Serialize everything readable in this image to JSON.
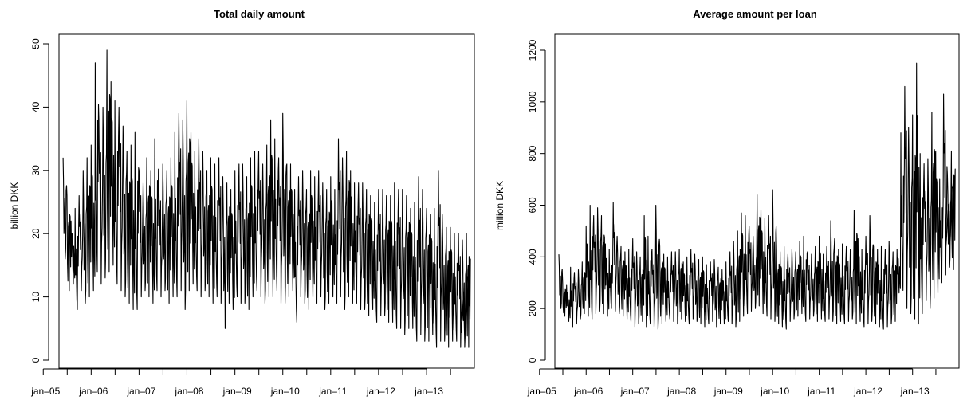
{
  "chart_data": [
    {
      "type": "line",
      "title": "Total daily amount",
      "xlabel": "",
      "ylabel": "billion DKK",
      "xlim": [
        "2005-05-01",
        "2013-12-31"
      ],
      "ylim": [
        0,
        50
      ],
      "yticks": [
        0,
        10,
        20,
        30,
        40,
        50
      ],
      "xticks": [
        {
          "date": "2005-01-01",
          "label": "jan–05"
        },
        {
          "date": "2006-01-01",
          "label": "jan–06"
        },
        {
          "date": "2007-01-01",
          "label": "jan–07"
        },
        {
          "date": "2008-01-01",
          "label": "jan–08"
        },
        {
          "date": "2009-01-01",
          "label": "jan–09"
        },
        {
          "date": "2010-01-01",
          "label": "jan–10"
        },
        {
          "date": "2011-01-01",
          "label": "jan–11"
        },
        {
          "date": "2012-01-01",
          "label": "jan–12"
        },
        {
          "date": "2013-01-01",
          "label": "jan–13"
        }
      ],
      "series": [
        {
          "color": "#000000",
          "x": [
            "2005-06-01",
            "2005-07-01",
            "2005-08-01",
            "2005-09-01",
            "2005-10-01",
            "2005-11-01",
            "2005-12-01",
            "2006-01-01",
            "2006-02-01",
            "2006-03-01",
            "2006-04-01",
            "2006-05-01",
            "2006-06-01",
            "2006-07-01",
            "2006-08-01",
            "2006-09-01",
            "2006-10-01",
            "2006-11-01",
            "2006-12-01",
            "2007-01-01",
            "2007-02-01",
            "2007-03-01",
            "2007-04-01",
            "2007-05-01",
            "2007-06-01",
            "2007-07-01",
            "2007-08-01",
            "2007-09-01",
            "2007-10-01",
            "2007-11-01",
            "2007-12-01",
            "2008-01-01",
            "2008-02-01",
            "2008-03-01",
            "2008-04-01",
            "2008-05-01",
            "2008-06-01",
            "2008-07-01",
            "2008-08-01",
            "2008-09-01",
            "2008-10-01",
            "2008-11-01",
            "2008-12-01",
            "2009-01-01",
            "2009-02-01",
            "2009-03-01",
            "2009-04-01",
            "2009-05-01",
            "2009-06-01",
            "2009-07-01",
            "2009-08-01",
            "2009-09-01",
            "2009-10-01",
            "2009-11-01",
            "2009-12-01",
            "2010-01-01",
            "2010-02-01",
            "2010-03-01",
            "2010-04-01",
            "2010-05-01",
            "2010-06-01",
            "2010-07-01",
            "2010-08-01",
            "2010-09-01",
            "2010-10-01",
            "2010-11-01",
            "2010-12-01",
            "2011-01-01",
            "2011-02-01",
            "2011-03-01",
            "2011-04-01",
            "2011-05-01",
            "2011-06-01",
            "2011-07-01",
            "2011-08-01",
            "2011-09-01",
            "2011-10-01",
            "2011-11-01",
            "2011-12-01",
            "2012-01-01",
            "2012-02-01",
            "2012-03-01",
            "2012-04-01",
            "2012-05-01",
            "2012-06-01",
            "2012-07-01",
            "2012-08-01",
            "2012-09-01",
            "2012-10-01",
            "2012-11-01",
            "2012-12-01",
            "2013-01-01",
            "2013-02-01",
            "2013-03-01",
            "2013-04-01",
            "2013-05-01",
            "2013-06-01",
            "2013-07-01",
            "2013-08-01",
            "2013-09-01",
            "2013-10-01",
            "2013-11-01",
            "2013-12-01"
          ],
          "low": [
            16,
            11,
            12,
            8,
            11,
            9,
            10,
            11,
            14,
            12,
            13,
            14,
            15,
            12,
            11,
            10,
            9,
            8,
            8,
            10,
            11,
            10,
            9,
            11,
            10,
            11,
            9,
            10,
            10,
            11,
            8,
            11,
            12,
            11,
            10,
            11,
            10,
            9,
            10,
            9,
            5,
            9,
            8,
            10,
            9,
            9,
            8,
            10,
            11,
            10,
            9,
            10,
            10,
            11,
            9,
            9,
            10,
            11,
            6,
            10,
            9,
            8,
            10,
            9,
            10,
            8,
            9,
            10,
            9,
            10,
            8,
            10,
            9,
            9,
            8,
            8,
            7,
            8,
            6,
            7,
            7,
            6,
            6,
            5,
            5,
            4,
            5,
            5,
            3,
            4,
            3,
            3,
            4,
            2,
            3,
            3,
            2,
            3,
            3,
            2,
            2,
            2,
            3
          ],
          "high": [
            32,
            26,
            22,
            24,
            26,
            30,
            32,
            34,
            47,
            38,
            40,
            49,
            44,
            41,
            40,
            37,
            33,
            34,
            36,
            30,
            28,
            32,
            30,
            35,
            29,
            31,
            30,
            32,
            36,
            39,
            38,
            41,
            36,
            33,
            35,
            33,
            30,
            32,
            31,
            32,
            29,
            28,
            27,
            30,
            31,
            31,
            29,
            32,
            33,
            33,
            31,
            34,
            38,
            35,
            32,
            39,
            31,
            31,
            27,
            29,
            30,
            27,
            30,
            29,
            30,
            28,
            27,
            29,
            27,
            35,
            32,
            33,
            30,
            28,
            28,
            28,
            27,
            26,
            25,
            27,
            27,
            26,
            26,
            28,
            27,
            27,
            26,
            24,
            25,
            29,
            27,
            24,
            23,
            24,
            30,
            23,
            21,
            21,
            20,
            20,
            19,
            20,
            16
          ]
        }
      ]
    },
    {
      "type": "line",
      "title": "Average amount per loan",
      "xlabel": "",
      "ylabel": "million DKK",
      "xlim": [
        "2005-05-01",
        "2013-12-31"
      ],
      "ylim": [
        0,
        1200
      ],
      "yticks": [
        0,
        200,
        400,
        600,
        800,
        1000,
        1200
      ],
      "xticks": [
        {
          "date": "2005-01-01",
          "label": "jan–05"
        },
        {
          "date": "2006-01-01",
          "label": "jan–06"
        },
        {
          "date": "2007-01-01",
          "label": "jan–07"
        },
        {
          "date": "2008-01-01",
          "label": "jan–08"
        },
        {
          "date": "2009-01-01",
          "label": "jan–09"
        },
        {
          "date": "2010-01-01",
          "label": "jan–10"
        },
        {
          "date": "2011-01-01",
          "label": "jan–11"
        },
        {
          "date": "2012-01-01",
          "label": "jan–12"
        },
        {
          "date": "2013-01-01",
          "label": "jan–13"
        }
      ],
      "series": [
        {
          "color": "#000000",
          "x": [
            "2005-06-01",
            "2005-07-01",
            "2005-08-01",
            "2005-09-01",
            "2005-10-01",
            "2005-11-01",
            "2005-12-01",
            "2006-01-01",
            "2006-02-01",
            "2006-03-01",
            "2006-04-01",
            "2006-05-01",
            "2006-06-01",
            "2006-07-01",
            "2006-08-01",
            "2006-09-01",
            "2006-10-01",
            "2006-11-01",
            "2006-12-01",
            "2007-01-01",
            "2007-02-01",
            "2007-03-01",
            "2007-04-01",
            "2007-05-01",
            "2007-06-01",
            "2007-07-01",
            "2007-08-01",
            "2007-09-01",
            "2007-10-01",
            "2007-11-01",
            "2007-12-01",
            "2008-01-01",
            "2008-02-01",
            "2008-03-01",
            "2008-04-01",
            "2008-05-01",
            "2008-06-01",
            "2008-07-01",
            "2008-08-01",
            "2008-09-01",
            "2008-10-01",
            "2008-11-01",
            "2008-12-01",
            "2009-01-01",
            "2009-02-01",
            "2009-03-01",
            "2009-04-01",
            "2009-05-01",
            "2009-06-01",
            "2009-07-01",
            "2009-08-01",
            "2009-09-01",
            "2009-10-01",
            "2009-11-01",
            "2009-12-01",
            "2010-01-01",
            "2010-02-01",
            "2010-03-01",
            "2010-04-01",
            "2010-05-01",
            "2010-06-01",
            "2010-07-01",
            "2010-08-01",
            "2010-09-01",
            "2010-10-01",
            "2010-11-01",
            "2010-12-01",
            "2011-01-01",
            "2011-02-01",
            "2011-03-01",
            "2011-04-01",
            "2011-05-01",
            "2011-06-01",
            "2011-07-01",
            "2011-08-01",
            "2011-09-01",
            "2011-10-01",
            "2011-11-01",
            "2011-12-01",
            "2012-01-01",
            "2012-02-01",
            "2012-03-01",
            "2012-04-01",
            "2012-05-01",
            "2012-06-01",
            "2012-07-01",
            "2012-08-01",
            "2012-09-01",
            "2012-10-01",
            "2012-11-01",
            "2012-12-01",
            "2013-01-01",
            "2013-02-01",
            "2013-03-01",
            "2013-04-01",
            "2013-05-01",
            "2013-06-01",
            "2013-07-01",
            "2013-08-01",
            "2013-09-01",
            "2013-10-01",
            "2013-11-01",
            "2013-12-01"
          ],
          "low": [
            200,
            170,
            150,
            130,
            140,
            160,
            180,
            170,
            160,
            180,
            190,
            180,
            170,
            200,
            190,
            180,
            170,
            160,
            150,
            130,
            140,
            150,
            130,
            140,
            130,
            120,
            140,
            150,
            160,
            150,
            140,
            160,
            150,
            140,
            160,
            150,
            140,
            130,
            140,
            150,
            130,
            140,
            140,
            150,
            140,
            130,
            150,
            170,
            180,
            190,
            200,
            210,
            180,
            170,
            160,
            150,
            140,
            130,
            120,
            150,
            160,
            170,
            180,
            150,
            160,
            170,
            150,
            160,
            150,
            160,
            150,
            140,
            150,
            140,
            150,
            160,
            140,
            150,
            130,
            140,
            150,
            140,
            130,
            120,
            130,
            140,
            150,
            260,
            270,
            200,
            180,
            160,
            140,
            180,
            230,
            200,
            240,
            260,
            300,
            330,
            360,
            350,
            400
          ],
          "high": [
            410,
            300,
            290,
            360,
            340,
            350,
            380,
            520,
            600,
            560,
            590,
            560,
            450,
            430,
            610,
            480,
            440,
            420,
            430,
            470,
            420,
            400,
            560,
            480,
            430,
            600,
            440,
            410,
            400,
            420,
            420,
            430,
            380,
            400,
            430,
            410,
            390,
            400,
            370,
            380,
            390,
            360,
            350,
            380,
            420,
            460,
            500,
            570,
            560,
            520,
            480,
            640,
            580,
            550,
            560,
            660,
            430,
            420,
            440,
            410,
            430,
            420,
            460,
            480,
            420,
            410,
            440,
            480,
            410,
            440,
            540,
            470,
            430,
            450,
            440,
            430,
            580,
            470,
            430,
            480,
            560,
            440,
            430,
            440,
            430,
            460,
            420,
            430,
            880,
            1060,
            900,
            950,
            1150,
            800,
            760,
            780,
            960,
            810,
            700,
            1030,
            720,
            810,
            740
          ]
        }
      ]
    }
  ]
}
